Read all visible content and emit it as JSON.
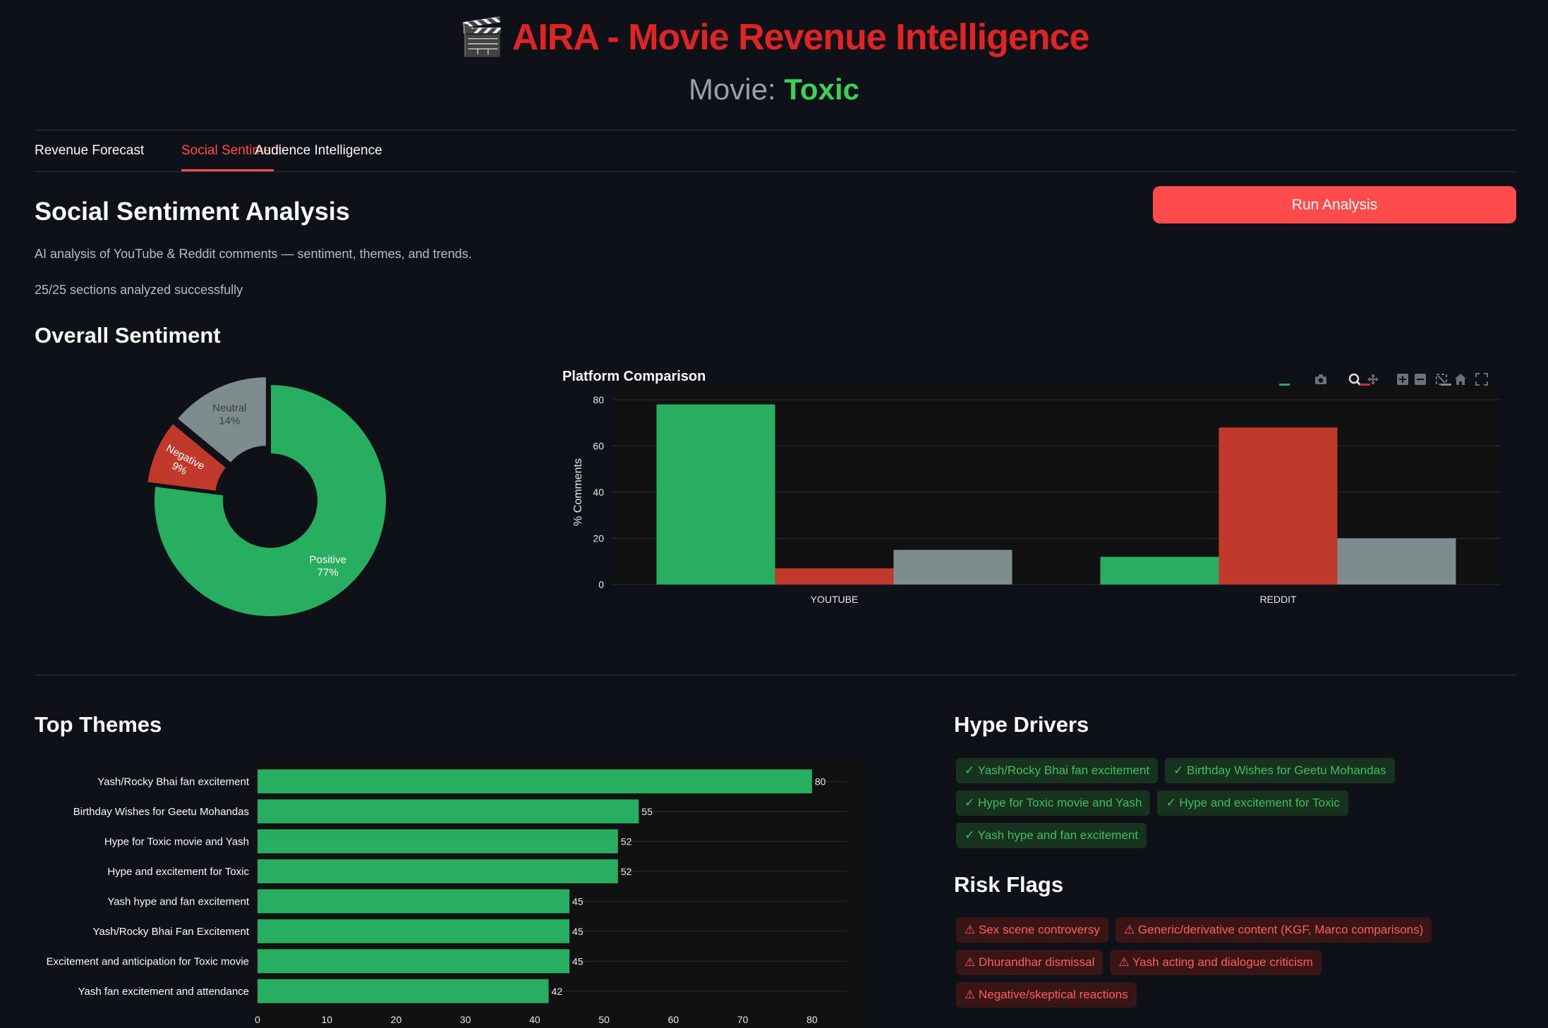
{
  "header": {
    "clapper_icon": "clapper-board-icon",
    "title": "AIRA - Movie Revenue Intelligence",
    "movie_label": "Movie:",
    "movie_name": "Toxic"
  },
  "tabs": [
    {
      "label": "Revenue Forecast",
      "active": false
    },
    {
      "label": "Social Sentiment",
      "active": true
    },
    {
      "label": "Audience Intelligence",
      "active": false
    }
  ],
  "section": {
    "heading": "Social Sentiment Analysis",
    "description": "AI analysis of YouTube & Reddit comments — sentiment, themes, and trends.",
    "status": "25/25 sections analyzed successfully",
    "run_button": "Run Analysis"
  },
  "overall": {
    "heading": "Overall Sentiment"
  },
  "platform": {
    "title": "Platform Comparison",
    "toolbar_icons": [
      "camera-icon",
      "zoom-icon",
      "pan-icon",
      "zoom-in-icon",
      "zoom-out-icon",
      "autoscale-icon",
      "reset-axes-icon",
      "fullscreen-icon"
    ]
  },
  "themes": {
    "heading": "Top Themes"
  },
  "hype": {
    "heading": "Hype Drivers",
    "items": [
      "✓ Yash/Rocky Bhai fan excitement",
      "✓ Birthday Wishes for Geetu Mohandas",
      "✓ Hype for Toxic movie and Yash",
      "✓ Hype and excitement for Toxic",
      "✓ Yash hype and fan excitement"
    ]
  },
  "risk": {
    "heading": "Risk Flags",
    "items": [
      "⚠ Sex scene controversy",
      "⚠ Generic/derivative content (KGF, Marco comparisons)",
      "⚠ Dhurandhar dismissal",
      "⚠ Yash acting and dialogue criticism",
      "⚠ Negative/skeptical reactions"
    ]
  },
  "colors": {
    "positive": "#27ae60",
    "negative": "#c0392b",
    "neutral": "#7f8c8d",
    "accent": "#ff4b4b",
    "title_red": "#e02424",
    "movie_green": "#39d353"
  },
  "chart_data": [
    {
      "type": "pie",
      "hole": true,
      "labels": [
        "Positive",
        "Negative",
        "Neutral"
      ],
      "values": [
        77,
        9,
        14
      ],
      "value_labels": [
        "77%",
        "9%",
        "14%"
      ],
      "pulled": [
        "Negative",
        "Neutral"
      ]
    },
    {
      "type": "bar",
      "title": "Platform Comparison",
      "categories": [
        "YOUTUBE",
        "REDDIT"
      ],
      "series": [
        {
          "name": "Positive",
          "values": [
            78,
            12
          ]
        },
        {
          "name": "Negative",
          "values": [
            7,
            68
          ]
        },
        {
          "name": "Neutral",
          "values": [
            15,
            20
          ]
        }
      ],
      "xlabel": "",
      "ylabel": "% Comments",
      "ylim": [
        0,
        80
      ],
      "yticks": [
        0,
        20,
        40,
        60,
        80
      ],
      "legend": "top-right",
      "grid": true
    },
    {
      "type": "bar",
      "orientation": "horizontal",
      "categories": [
        "Yash/Rocky Bhai fan excitement",
        "Birthday Wishes for Geetu Mohandas",
        "Hype for Toxic movie and Yash",
        "Hype and excitement for Toxic",
        "Yash hype and fan excitement",
        "Yash/Rocky Bhai Fan Excitement",
        "Excitement and anticipation for Toxic movie",
        "Yash fan excitement and attendance"
      ],
      "values": [
        80,
        55,
        52,
        52,
        45,
        45,
        45,
        42
      ],
      "xlim": [
        0,
        85
      ],
      "xticks": [
        0,
        10,
        20,
        30,
        40,
        50,
        60,
        70,
        80
      ],
      "grid": true
    }
  ]
}
